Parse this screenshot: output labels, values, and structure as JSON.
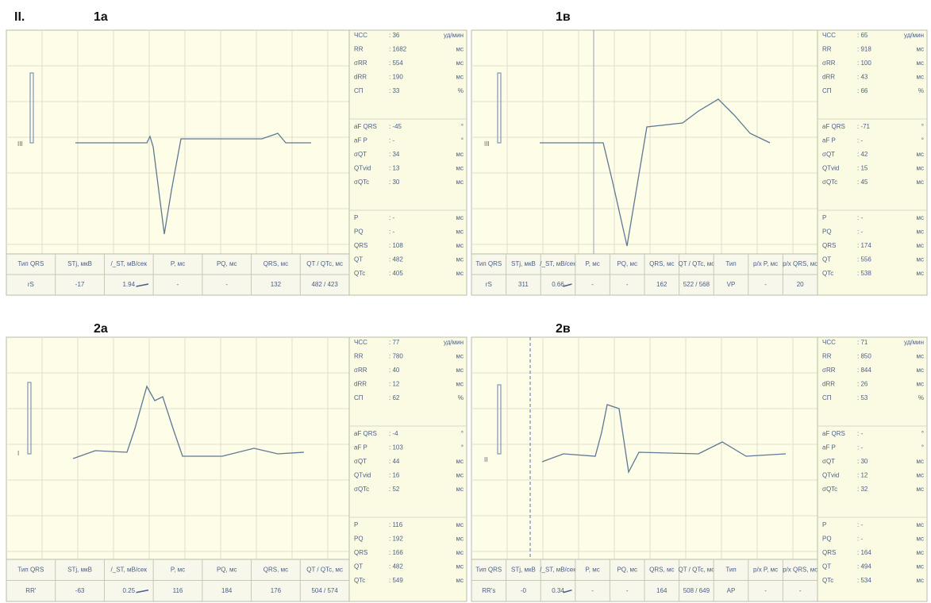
{
  "heading": "II.",
  "panels": [
    {
      "label": "1а",
      "lead": "III",
      "params": [
        [
          {
            "name": "ЧСС",
            "value": ": 36",
            "unit": "уд/мин"
          },
          {
            "name": "RR",
            "value": ": 1682",
            "unit": "мс"
          },
          {
            "name": "σRR",
            "value": ": 554",
            "unit": "мс"
          },
          {
            "name": "dRR",
            "value": ": 190",
            "unit": "мс"
          },
          {
            "name": "СП",
            "value": ": 33",
            "unit": "%"
          }
        ],
        [
          {
            "name": "aF QRS",
            "value": ": -45",
            "unit": "°"
          },
          {
            "name": "aF P",
            "value": ": -",
            "unit": "°"
          },
          {
            "name": "σQT",
            "value": ": 34",
            "unit": "мс"
          },
          {
            "name": "QTvid",
            "value": ": 13",
            "unit": "мс"
          },
          {
            "name": "σQTc",
            "value": ": 30",
            "unit": "мс"
          }
        ],
        [
          {
            "name": "P",
            "value": ": -",
            "unit": "мс"
          },
          {
            "name": "PQ",
            "value": ": -",
            "unit": "мс"
          },
          {
            "name": "QRS",
            "value": ": 108",
            "unit": "мс"
          },
          {
            "name": "QT",
            "value": ": 482",
            "unit": "мс"
          },
          {
            "name": "QTc",
            "value": ": 405",
            "unit": "мс"
          }
        ]
      ],
      "table": {
        "headers": [
          "Тип QRS",
          "STj, мкВ",
          "/_ST, мВ/сек",
          "P, мс",
          "PQ, мс",
          "QRS, мс",
          "QT / QTc, мс"
        ],
        "row": [
          "rS",
          "-17",
          "1.94",
          "-",
          "-",
          "132",
          "482 / 423"
        ]
      }
    },
    {
      "label": "1в",
      "lead": "III",
      "params": [
        [
          {
            "name": "ЧСС",
            "value": ": 65",
            "unit": "уд/мин"
          },
          {
            "name": "RR",
            "value": ": 918",
            "unit": "мс"
          },
          {
            "name": "σRR",
            "value": ": 100",
            "unit": "мс"
          },
          {
            "name": "dRR",
            "value": ": 43",
            "unit": "мс"
          },
          {
            "name": "СП",
            "value": ": 66",
            "unit": "%"
          }
        ],
        [
          {
            "name": "aF QRS",
            "value": ": -71",
            "unit": "°"
          },
          {
            "name": "aF P",
            "value": ": -",
            "unit": "°"
          },
          {
            "name": "σQT",
            "value": ": 42",
            "unit": "мс"
          },
          {
            "name": "QTvid",
            "value": ": 15",
            "unit": "мс"
          },
          {
            "name": "σQTc",
            "value": ": 45",
            "unit": "мс"
          }
        ],
        [
          {
            "name": "P",
            "value": ": -",
            "unit": "мс"
          },
          {
            "name": "PQ",
            "value": ": -",
            "unit": "мс"
          },
          {
            "name": "QRS",
            "value": ": 174",
            "unit": "мс"
          },
          {
            "name": "QT",
            "value": ": 556",
            "unit": "мс"
          },
          {
            "name": "QTc",
            "value": ": 538",
            "unit": "мс"
          }
        ]
      ],
      "table": {
        "headers": [
          "Тип QRS",
          "STj, мкВ",
          "/_ST, мВ/сек",
          "P, мс",
          "PQ, мс",
          "QRS, мс",
          "QT / QTc, мс",
          "Тип",
          "р/х P, мс",
          "р/х QRS, мс"
        ],
        "row": [
          "rS",
          "311",
          "0.66",
          "-",
          "-",
          "162",
          "522 / 568",
          "VP",
          "-",
          "20"
        ]
      }
    },
    {
      "label": "2а",
      "lead": "I",
      "params": [
        [
          {
            "name": "ЧСС",
            "value": ": 77",
            "unit": "уд/мин"
          },
          {
            "name": "RR",
            "value": ": 780",
            "unit": "мс"
          },
          {
            "name": "σRR",
            "value": ": 40",
            "unit": "мс"
          },
          {
            "name": "dRR",
            "value": ": 12",
            "unit": "мс"
          },
          {
            "name": "СП",
            "value": ": 62",
            "unit": "%"
          }
        ],
        [
          {
            "name": "aF QRS",
            "value": ": -4",
            "unit": "°"
          },
          {
            "name": "aF P",
            "value": ": 103",
            "unit": "°"
          },
          {
            "name": "σQT",
            "value": ": 44",
            "unit": "мс"
          },
          {
            "name": "QTvid",
            "value": ": 16",
            "unit": "мс"
          },
          {
            "name": "σQTc",
            "value": ": 52",
            "unit": "мс"
          }
        ],
        [
          {
            "name": "P",
            "value": ": 116",
            "unit": "мс"
          },
          {
            "name": "PQ",
            "value": ": 192",
            "unit": "мс"
          },
          {
            "name": "QRS",
            "value": ": 166",
            "unit": "мс"
          },
          {
            "name": "QT",
            "value": ": 482",
            "unit": "мс"
          },
          {
            "name": "QTc",
            "value": ": 549",
            "unit": "мс"
          }
        ]
      ],
      "table": {
        "headers": [
          "Тип QRS",
          "STj, мкВ",
          "/_ST, мВ/сек",
          "P, мс",
          "PQ, мс",
          "QRS, мс",
          "QT / QTc, мс"
        ],
        "row": [
          "RR'",
          "-63",
          "0.25",
          "116",
          "184",
          "176",
          "504 / 574"
        ]
      }
    },
    {
      "label": "2в",
      "lead": "II",
      "params": [
        [
          {
            "name": "ЧСС",
            "value": ": 71",
            "unit": "уд/мин"
          },
          {
            "name": "RR",
            "value": ": 850",
            "unit": "мс"
          },
          {
            "name": "σRR",
            "value": ": 844",
            "unit": "мс"
          },
          {
            "name": "dRR",
            "value": ": 26",
            "unit": "мс"
          },
          {
            "name": "СП",
            "value": ": 53",
            "unit": "%"
          }
        ],
        [
          {
            "name": "aF QRS",
            "value": ": -",
            "unit": "°"
          },
          {
            "name": "aF P",
            "value": ": -",
            "unit": "°"
          },
          {
            "name": "σQT",
            "value": ": 30",
            "unit": "мс"
          },
          {
            "name": "QTvid",
            "value": ": 12",
            "unit": "мс"
          },
          {
            "name": "σQTc",
            "value": ": 32",
            "unit": "мс"
          }
        ],
        [
          {
            "name": "P",
            "value": ": -",
            "unit": "мс"
          },
          {
            "name": "PQ",
            "value": ": -",
            "unit": "мс"
          },
          {
            "name": "QRS",
            "value": ": 164",
            "unit": "мс"
          },
          {
            "name": "QT",
            "value": ": 494",
            "unit": "мс"
          },
          {
            "name": "QTc",
            "value": ": 534",
            "unit": "мс"
          }
        ]
      ],
      "table": {
        "headers": [
          "Тип QRS",
          "STj, мкВ",
          "/_ST, мВ/сек",
          "P, мс",
          "PQ, мс",
          "QRS, мс",
          "QT / QTc, мс",
          "Тип",
          "р/х P, мс",
          "р/х QRS, мс"
        ],
        "row": [
          "RR's",
          "-0",
          "0.34",
          "-",
          "-",
          "164",
          "508 / 649",
          "AP",
          "-",
          "-"
        ]
      }
    }
  ]
}
